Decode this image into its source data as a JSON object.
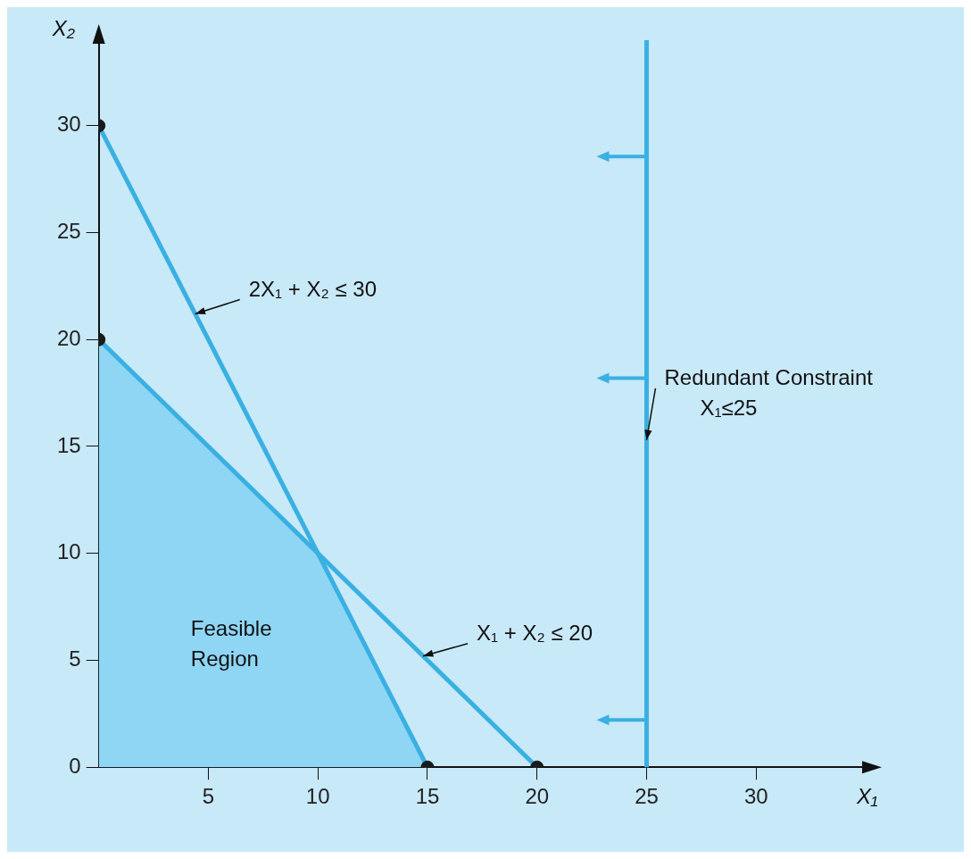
{
  "chart_data": {
    "type": "line",
    "xlabel": "X₁",
    "ylabel": "X₂",
    "xlim": [
      0,
      35
    ],
    "ylim": [
      0,
      34
    ],
    "xticks": [
      5,
      10,
      15,
      20,
      25,
      30
    ],
    "yticks": [
      0,
      5,
      10,
      15,
      20,
      25,
      30
    ],
    "series": [
      {
        "type": "area",
        "name": "Feasible Region",
        "color": "#8fd6f5",
        "x": [
          0,
          10,
          15
        ],
        "values": [
          20,
          10,
          0
        ]
      },
      {
        "color": "#3ab0e2",
        "x": [
          0,
          15
        ],
        "values": [
          30,
          0
        ],
        "marker": "none"
      },
      {
        "color": "#3ab0e2",
        "x": [
          0,
          20
        ],
        "values": [
          20,
          0
        ],
        "marker": "none"
      },
      {
        "type": "scatter",
        "color": "#1a1a1a",
        "x": [
          0,
          0,
          15,
          20
        ],
        "values": [
          30,
          20,
          0,
          0
        ],
        "marker": "circle"
      }
    ],
    "ref_lines": [
      {
        "axis": "x",
        "value": 25,
        "color": "#3ab0e2"
      }
    ],
    "annotations": [
      {
        "text": "2X₁ + X₂ ≤ 30",
        "x": 4.4,
        "y": 21.2
      },
      {
        "text": "X₁ + X₂ ≤ 20",
        "x": 14.8,
        "y": 5.2
      },
      {
        "text": "Redundant Constraint\n      X₁≤25",
        "x": 25,
        "y": 15.3
      }
    ]
  }
}
